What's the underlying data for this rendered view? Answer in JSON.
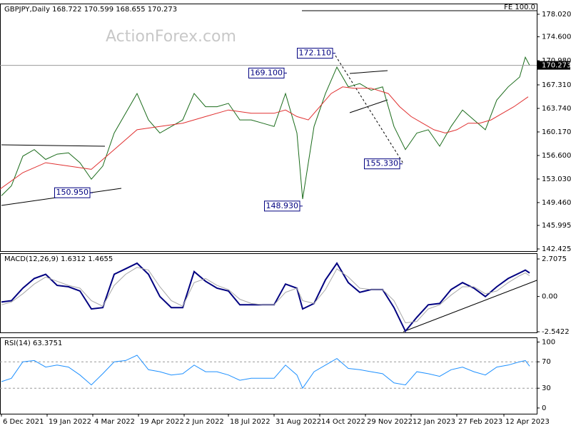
{
  "chart_data": [
    {
      "type": "line",
      "title": "GBPJPY,Daily 168.722 170.599 168.655 170.273",
      "watermark": "ActionForex.com",
      "fe_label": "FE 100.0",
      "xlim": [
        0,
        376
      ],
      "xticks": [
        {
          "value": 1,
          "label": "6 Dec 2021"
        },
        {
          "value": 33,
          "label": "19 Jan 2022"
        },
        {
          "value": 65,
          "label": "4 Mar 2022"
        },
        {
          "value": 97,
          "label": "19 Apr 2022"
        },
        {
          "value": 129,
          "label": "2 Jun 2022"
        },
        {
          "value": 160,
          "label": "18 Jul 2022"
        },
        {
          "value": 192,
          "label": "31 Aug 2022"
        },
        {
          "value": 224,
          "label": "14 Oct 2022"
        },
        {
          "value": 256,
          "label": "29 Nov 2022"
        },
        {
          "value": 288,
          "label": "12 Jan 2023"
        },
        {
          "value": 320,
          "label": "27 Feb 2023"
        },
        {
          "value": 353,
          "label": "12 Apr 2023"
        }
      ],
      "ylim": [
        142.1,
        179.64
      ],
      "yticks": [
        {
          "value": 178.02,
          "label": "178.020"
        },
        {
          "value": 174.6,
          "label": "174.600"
        },
        {
          "value": 170.98,
          "label": "170.980"
        },
        {
          "value": 167.31,
          "label": "167.310"
        },
        {
          "value": 163.74,
          "label": "163.740"
        },
        {
          "value": 160.17,
          "label": "160.170"
        },
        {
          "value": 156.6,
          "label": "156.600"
        },
        {
          "value": 153.03,
          "label": "153.030"
        },
        {
          "value": 149.46,
          "label": "149.460"
        },
        {
          "value": 145.995,
          "label": "145.995"
        },
        {
          "value": 142.425,
          "label": "142.425"
        }
      ],
      "last_price": {
        "value": 170.273,
        "label": "170.273"
      },
      "series": [
        {
          "color": "#1a6b1a",
          "x": [
            1,
            8,
            16,
            24,
            32,
            40,
            48,
            56,
            64,
            72,
            80,
            88,
            96,
            104,
            112,
            120,
            128,
            136,
            144,
            152,
            160,
            168,
            176,
            184,
            192,
            200,
            208,
            212,
            220,
            228,
            236,
            244,
            252,
            260,
            268,
            276,
            284,
            292,
            300,
            308,
            316,
            324,
            332,
            340,
            348,
            356,
            364,
            368,
            371
          ],
          "values": [
            150.5,
            152,
            156.5,
            157.5,
            156,
            156.8,
            157,
            155.5,
            153,
            155,
            160,
            163,
            166,
            162,
            160,
            161,
            162,
            166,
            164,
            164,
            164.5,
            162,
            162,
            161.5,
            161,
            166,
            160,
            150,
            161,
            166,
            170,
            167,
            167.5,
            166.5,
            167,
            161,
            157.5,
            160,
            160.5,
            158,
            161,
            163.5,
            162,
            160.5,
            165,
            167,
            168.5,
            171.5,
            170.273
          ]
        },
        {
          "color": "#e03030",
          "x": [
            0,
            16,
            32,
            48,
            64,
            80,
            96,
            112,
            128,
            144,
            160,
            176,
            192,
            200,
            208,
            216,
            224,
            232,
            240,
            248,
            260,
            272,
            280,
            288,
            296,
            304,
            312,
            320,
            328,
            336,
            344,
            352,
            360,
            370
          ],
          "values": [
            151.5,
            154,
            155.5,
            155,
            154.5,
            157.5,
            160.5,
            161,
            161.5,
            162.5,
            163.5,
            163,
            163,
            163.5,
            162.5,
            162,
            164,
            166,
            167,
            166.8,
            166.8,
            166,
            164,
            162.5,
            161.5,
            160.5,
            160,
            160.5,
            161.5,
            161.5,
            162,
            163,
            164,
            165.5
          ]
        }
      ],
      "annotations": [
        {
          "label": "172.110",
          "value": 172.11,
          "x": 235
        },
        {
          "label": "169.100",
          "value": 169.1,
          "x": 201
        },
        {
          "label": "155.330",
          "value": 155.33,
          "x": 282
        },
        {
          "label": "148.930",
          "value": 148.93,
          "x": 212
        },
        {
          "label": "150.950",
          "value": 150.95,
          "x": 65
        }
      ]
    },
    {
      "type": "line",
      "title": "MACD(12,26,9) 1.6312 1.4655",
      "ylim": [
        -2.59,
        3.12
      ],
      "yticks": [
        2.7075,
        {
          "value": 0,
          "label": "0.00"
        },
        -2.5422
      ],
      "series": [
        {
          "color": "#000080",
          "width": 2,
          "x": [
            1,
            8,
            16,
            24,
            32,
            40,
            48,
            56,
            64,
            72,
            80,
            88,
            96,
            104,
            112,
            120,
            128,
            136,
            144,
            152,
            160,
            168,
            176,
            184,
            192,
            200,
            208,
            212,
            220,
            228,
            236,
            244,
            252,
            260,
            268,
            276,
            284,
            292,
            300,
            308,
            316,
            324,
            332,
            340,
            348,
            356,
            364,
            368,
            371
          ],
          "values": [
            -0.4,
            -0.3,
            0.6,
            1.3,
            1.6,
            0.8,
            0.7,
            0.4,
            -0.9,
            -0.8,
            1.6,
            2.0,
            2.4,
            1.6,
            0.0,
            -0.8,
            -0.8,
            1.8,
            1.1,
            0.6,
            0.4,
            -0.6,
            -0.6,
            -0.6,
            -0.6,
            0.9,
            0.6,
            -0.9,
            -0.5,
            1.2,
            2.4,
            1.0,
            0.3,
            0.5,
            0.5,
            -0.8,
            -2.5,
            -1.5,
            -0.6,
            -0.5,
            0.5,
            1.0,
            0.6,
            0.0,
            0.7,
            1.3,
            1.7,
            1.9,
            1.7
          ]
        },
        {
          "color": "#a8a8a8",
          "width": 1,
          "x": [
            1,
            8,
            16,
            24,
            32,
            40,
            48,
            56,
            64,
            72,
            80,
            88,
            96,
            104,
            112,
            120,
            128,
            136,
            144,
            152,
            160,
            168,
            176,
            184,
            192,
            200,
            208,
            212,
            220,
            228,
            236,
            244,
            252,
            260,
            268,
            276,
            284,
            292,
            300,
            308,
            316,
            324,
            332,
            340,
            348,
            356,
            364,
            368,
            371
          ],
          "values": [
            -0.6,
            -0.4,
            0.2,
            0.9,
            1.4,
            1.1,
            0.8,
            0.6,
            -0.3,
            -0.7,
            0.8,
            1.6,
            2.1,
            1.9,
            0.7,
            -0.3,
            -0.7,
            1.0,
            1.3,
            0.8,
            0.5,
            -0.2,
            -0.5,
            -0.6,
            -0.6,
            0.3,
            0.6,
            -0.3,
            -0.5,
            0.5,
            2.0,
            1.4,
            0.6,
            0.5,
            0.5,
            -0.3,
            -1.9,
            -1.8,
            -0.9,
            -0.6,
            0.1,
            0.7,
            0.7,
            0.2,
            0.4,
            1.0,
            1.5,
            1.7,
            1.5
          ]
        }
      ]
    },
    {
      "type": "line",
      "title": "RSI(14) 63.3751",
      "ylim": [
        -8.7,
        107
      ],
      "yticks": [
        100,
        70,
        30,
        0
      ],
      "levels": [
        70,
        30
      ],
      "series": [
        {
          "color": "#1e90ff",
          "width": 1,
          "x": [
            1,
            8,
            16,
            24,
            32,
            40,
            48,
            56,
            64,
            72,
            80,
            88,
            96,
            104,
            112,
            120,
            128,
            136,
            144,
            152,
            160,
            168,
            176,
            184,
            192,
            200,
            208,
            212,
            220,
            228,
            236,
            244,
            252,
            260,
            268,
            276,
            284,
            292,
            300,
            308,
            316,
            324,
            332,
            340,
            348,
            356,
            364,
            368,
            371
          ],
          "values": [
            40,
            45,
            70,
            72,
            62,
            65,
            62,
            50,
            35,
            52,
            70,
            72,
            80,
            58,
            55,
            50,
            52,
            65,
            55,
            55,
            50,
            42,
            45,
            45,
            45,
            65,
            50,
            30,
            55,
            65,
            75,
            60,
            58,
            55,
            52,
            38,
            35,
            55,
            52,
            48,
            58,
            62,
            55,
            50,
            62,
            65,
            70,
            72,
            63.38
          ]
        }
      ]
    }
  ]
}
